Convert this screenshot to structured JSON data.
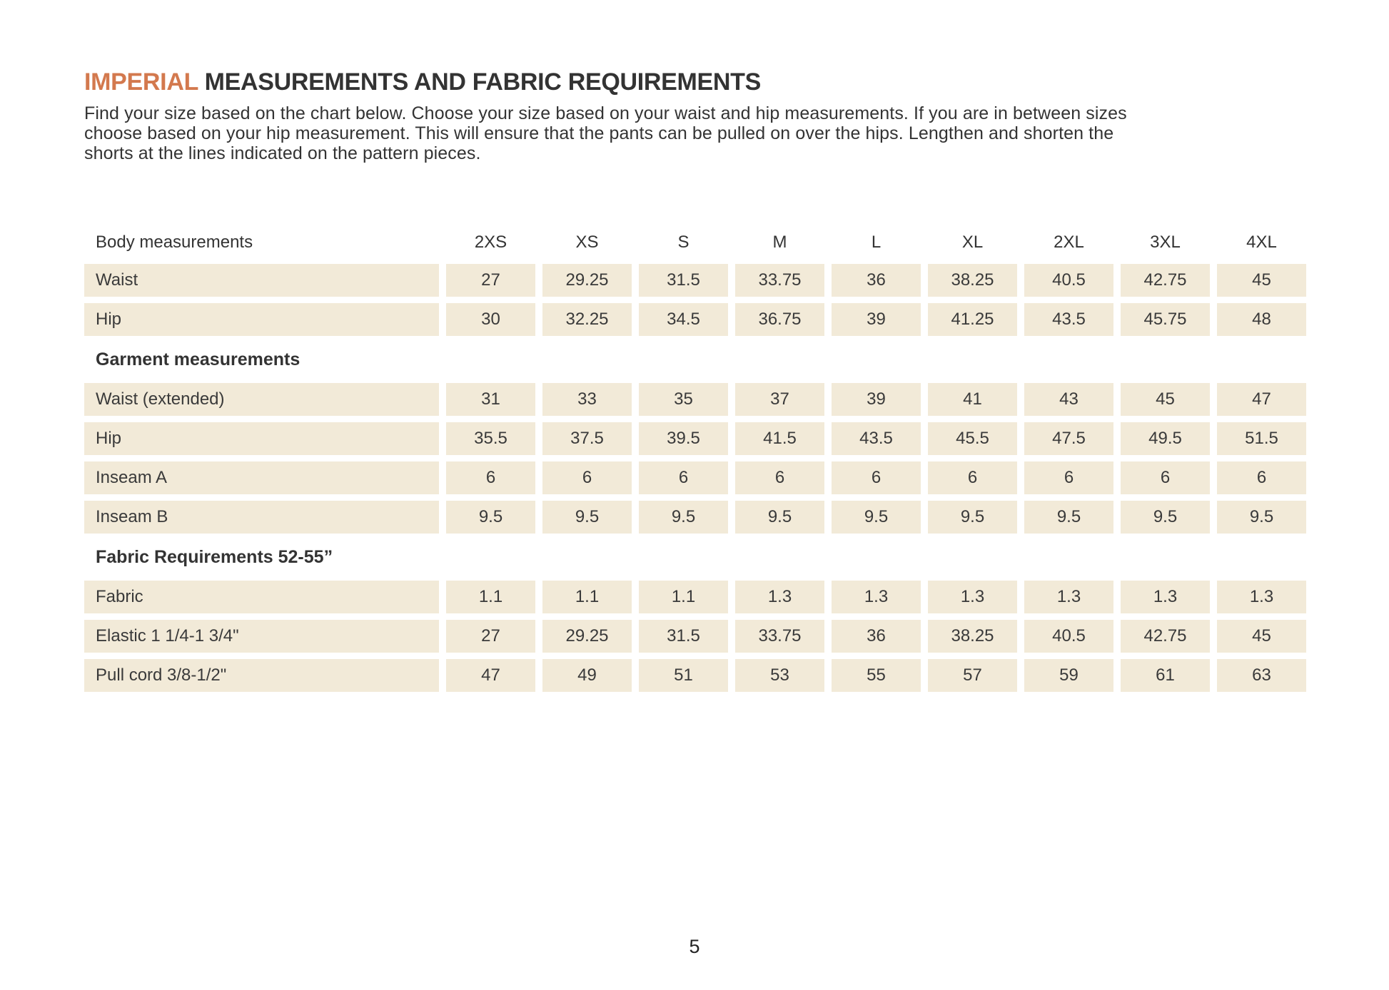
{
  "title": {
    "highlight": "IMPERIAL",
    "rest": " MEASUREMENTS AND FABRIC REQUIREMENTS"
  },
  "intro": {
    "lines": [
      "Find your size based on the chart below. Choose your size based on your waist and hip measurements. If you are in between sizes",
      "choose based on your hip measurement. This will ensure that the pants can be pulled on over the hips. Lengthen and shorten the",
      "shorts at the lines indicated on the pattern pieces."
    ]
  },
  "table": {
    "header": {
      "label": "Body measurements",
      "sizes": [
        "2XS",
        "XS",
        "S",
        "M",
        "L",
        "XL",
        "2XL",
        "3XL",
        "4XL"
      ]
    },
    "sections": {
      "garment": "Garment measurements",
      "fabric": "Fabric Requirements 52-55”"
    },
    "rows": [
      {
        "label": "Waist",
        "values": [
          "27",
          "29.25",
          "31.5",
          "33.75",
          "36",
          "38.25",
          "40.5",
          "42.75",
          "45"
        ]
      },
      {
        "label": "Hip",
        "values": [
          "30",
          "32.25",
          "34.5",
          "36.75",
          "39",
          "41.25",
          "43.5",
          "45.75",
          "48"
        ]
      },
      {
        "label": "Waist (extended)",
        "values": [
          "31",
          "33",
          "35",
          "37",
          "39",
          "41",
          "43",
          "45",
          "47"
        ]
      },
      {
        "label": "Hip",
        "values": [
          "35.5",
          "37.5",
          "39.5",
          "41.5",
          "43.5",
          "45.5",
          "47.5",
          "49.5",
          "51.5"
        ]
      },
      {
        "label": "Inseam A",
        "values": [
          "6",
          "6",
          "6",
          "6",
          "6",
          "6",
          "6",
          "6",
          "6"
        ]
      },
      {
        "label": "Inseam B",
        "values": [
          "9.5",
          "9.5",
          "9.5",
          "9.5",
          "9.5",
          "9.5",
          "9.5",
          "9.5",
          "9.5"
        ]
      },
      {
        "label": "Fabric",
        "values": [
          "1.1",
          "1.1",
          "1.1",
          "1.3",
          "1.3",
          "1.3",
          "1.3",
          "1.3",
          "1.3"
        ]
      },
      {
        "label": "Elastic 1 1/4-1 3/4\"",
        "values": [
          "27",
          "29.25",
          "31.5",
          "33.75",
          "36",
          "38.25",
          "40.5",
          "42.75",
          "45"
        ]
      },
      {
        "label": "Pull cord 3/8-1/2\"",
        "values": [
          "47",
          "49",
          "51",
          "53",
          "55",
          "57",
          "59",
          "61",
          "63"
        ]
      }
    ]
  },
  "page": {
    "number": "5"
  }
}
